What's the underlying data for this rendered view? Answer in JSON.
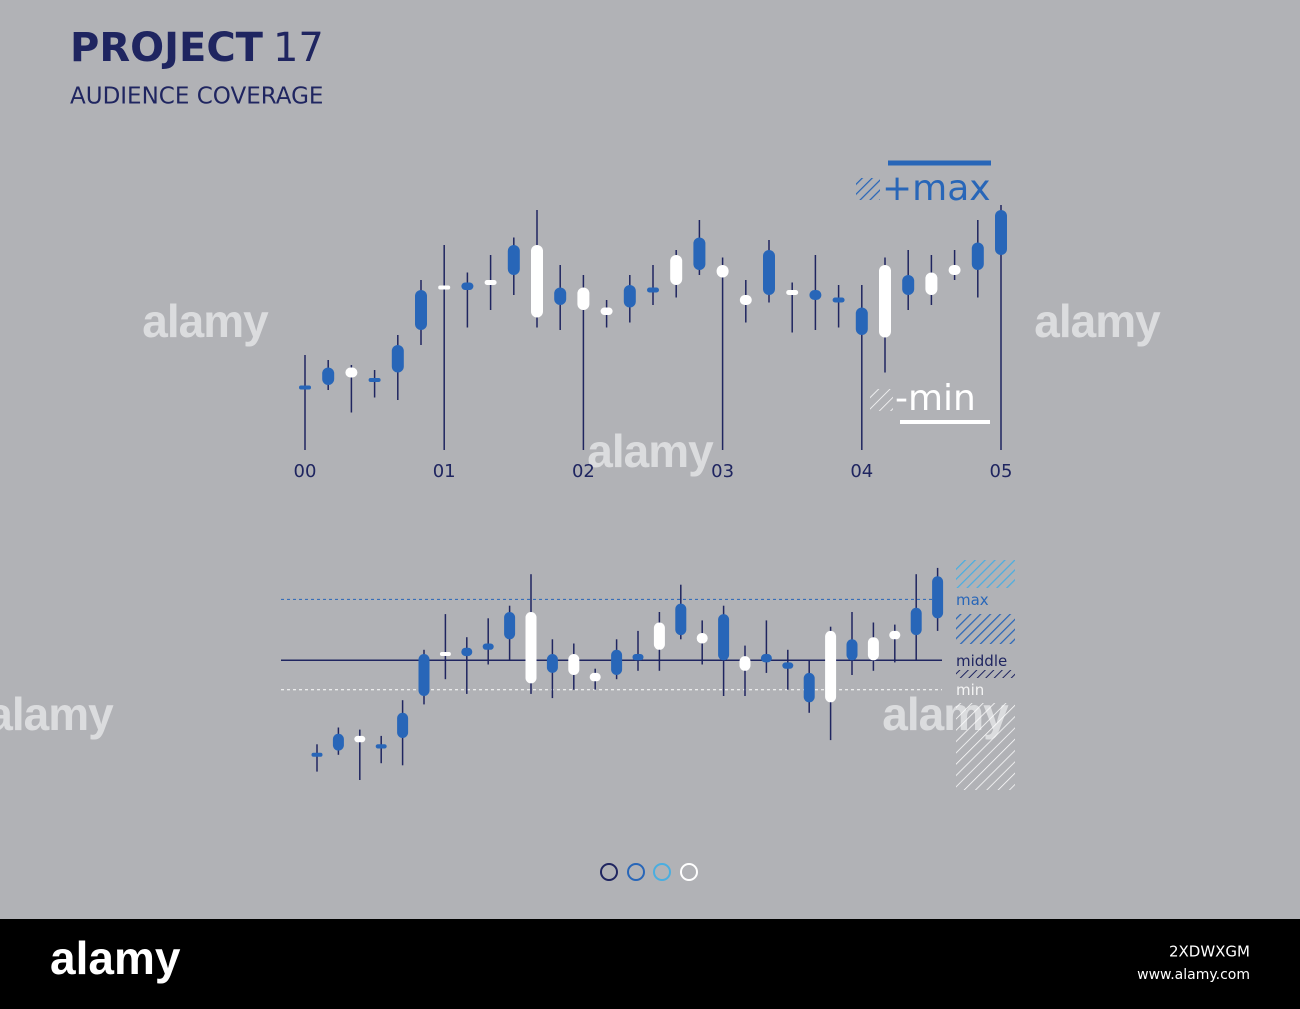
{
  "header": {
    "title": "PROJECT",
    "number": "17",
    "subtitle": "AUDIENCE COVERAGE"
  },
  "watermark": "alamy",
  "chart_data": [
    {
      "type": "candlestick",
      "categories": [
        "00",
        null,
        null,
        null,
        null,
        null,
        "01",
        null,
        null,
        null,
        null,
        null,
        "02",
        null,
        null,
        null,
        null,
        null,
        "03",
        null,
        null,
        null,
        null,
        null,
        "04",
        null,
        null,
        null,
        null,
        null,
        "05"
      ],
      "open": [
        25,
        33,
        29,
        28,
        42,
        64,
        64,
        67,
        66,
        82,
        53,
        65,
        56,
        54,
        66,
        65,
        66,
        85,
        69,
        58,
        80,
        62,
        64,
        61,
        57,
        45,
        70,
        62,
        70,
        83,
        96
      ],
      "high": [
        38,
        36,
        34,
        32,
        46,
        68,
        82,
        71,
        78,
        85,
        96,
        74,
        70,
        60,
        70,
        74,
        80,
        92,
        77,
        68,
        84,
        67,
        78,
        66,
        66,
        77,
        80,
        78,
        80,
        92,
        98
      ],
      "low": [
        20,
        24,
        15,
        21,
        20,
        42,
        52,
        49,
        56,
        62,
        49,
        48,
        48,
        49,
        51,
        58,
        61,
        70,
        42,
        51,
        59,
        47,
        48,
        49,
        36,
        31,
        56,
        58,
        68,
        61,
        78
      ],
      "close": [
        24,
        26,
        33,
        27,
        31,
        48,
        65,
        64,
        68,
        70,
        82,
        58,
        65,
        57,
        57,
        63,
        78,
        72,
        74,
        62,
        62,
        64,
        60,
        59,
        46,
        74,
        62,
        71,
        74,
        72,
        78
      ],
      "up_color": "#ffffff",
      "down_color": "#2866b8",
      "ylim": [
        0,
        100
      ],
      "max_label": "+max",
      "min_label": "-min"
    },
    {
      "type": "candlestick",
      "open": [
        12,
        22,
        18,
        17,
        32,
        60,
        59,
        63,
        65,
        80,
        46,
        60,
        50,
        47,
        62,
        60,
        62,
        84,
        65,
        79,
        52,
        60,
        56,
        51,
        37,
        67,
        57,
        67,
        82,
        97
      ],
      "high": [
        17,
        25,
        24,
        21,
        38,
        62,
        79,
        68,
        77,
        83,
        98,
        67,
        65,
        53,
        67,
        71,
        80,
        93,
        76,
        83,
        64,
        76,
        62,
        57,
        73,
        80,
        75,
        74,
        98,
        101
      ],
      "low": [
        4,
        12,
        0,
        8,
        7,
        36,
        48,
        41,
        55,
        57,
        41,
        39,
        43,
        43,
        48,
        52,
        52,
        67,
        55,
        40,
        40,
        51,
        43,
        32,
        19,
        50,
        52,
        56,
        57,
        71
      ],
      "close": [
        11,
        14,
        21,
        15,
        20,
        40,
        60,
        59,
        62,
        67,
        80,
        51,
        60,
        51,
        50,
        57,
        75,
        69,
        70,
        57,
        59,
        56,
        53,
        37,
        71,
        57,
        68,
        71,
        69,
        77
      ],
      "up_color": "#ffffff",
      "down_color": "#2866b8",
      "ylim": [
        0,
        105
      ],
      "levels": [
        {
          "name": "max",
          "value": 86,
          "color": "#2866b8"
        },
        {
          "name": "middle",
          "value": 57,
          "color": "#1f2560"
        },
        {
          "name": "min",
          "value": 43,
          "color": "#ffffff"
        }
      ]
    }
  ],
  "footer": {
    "brand": "alamy",
    "image_id": "2XDWXGM",
    "url": "www.alamy.com"
  }
}
